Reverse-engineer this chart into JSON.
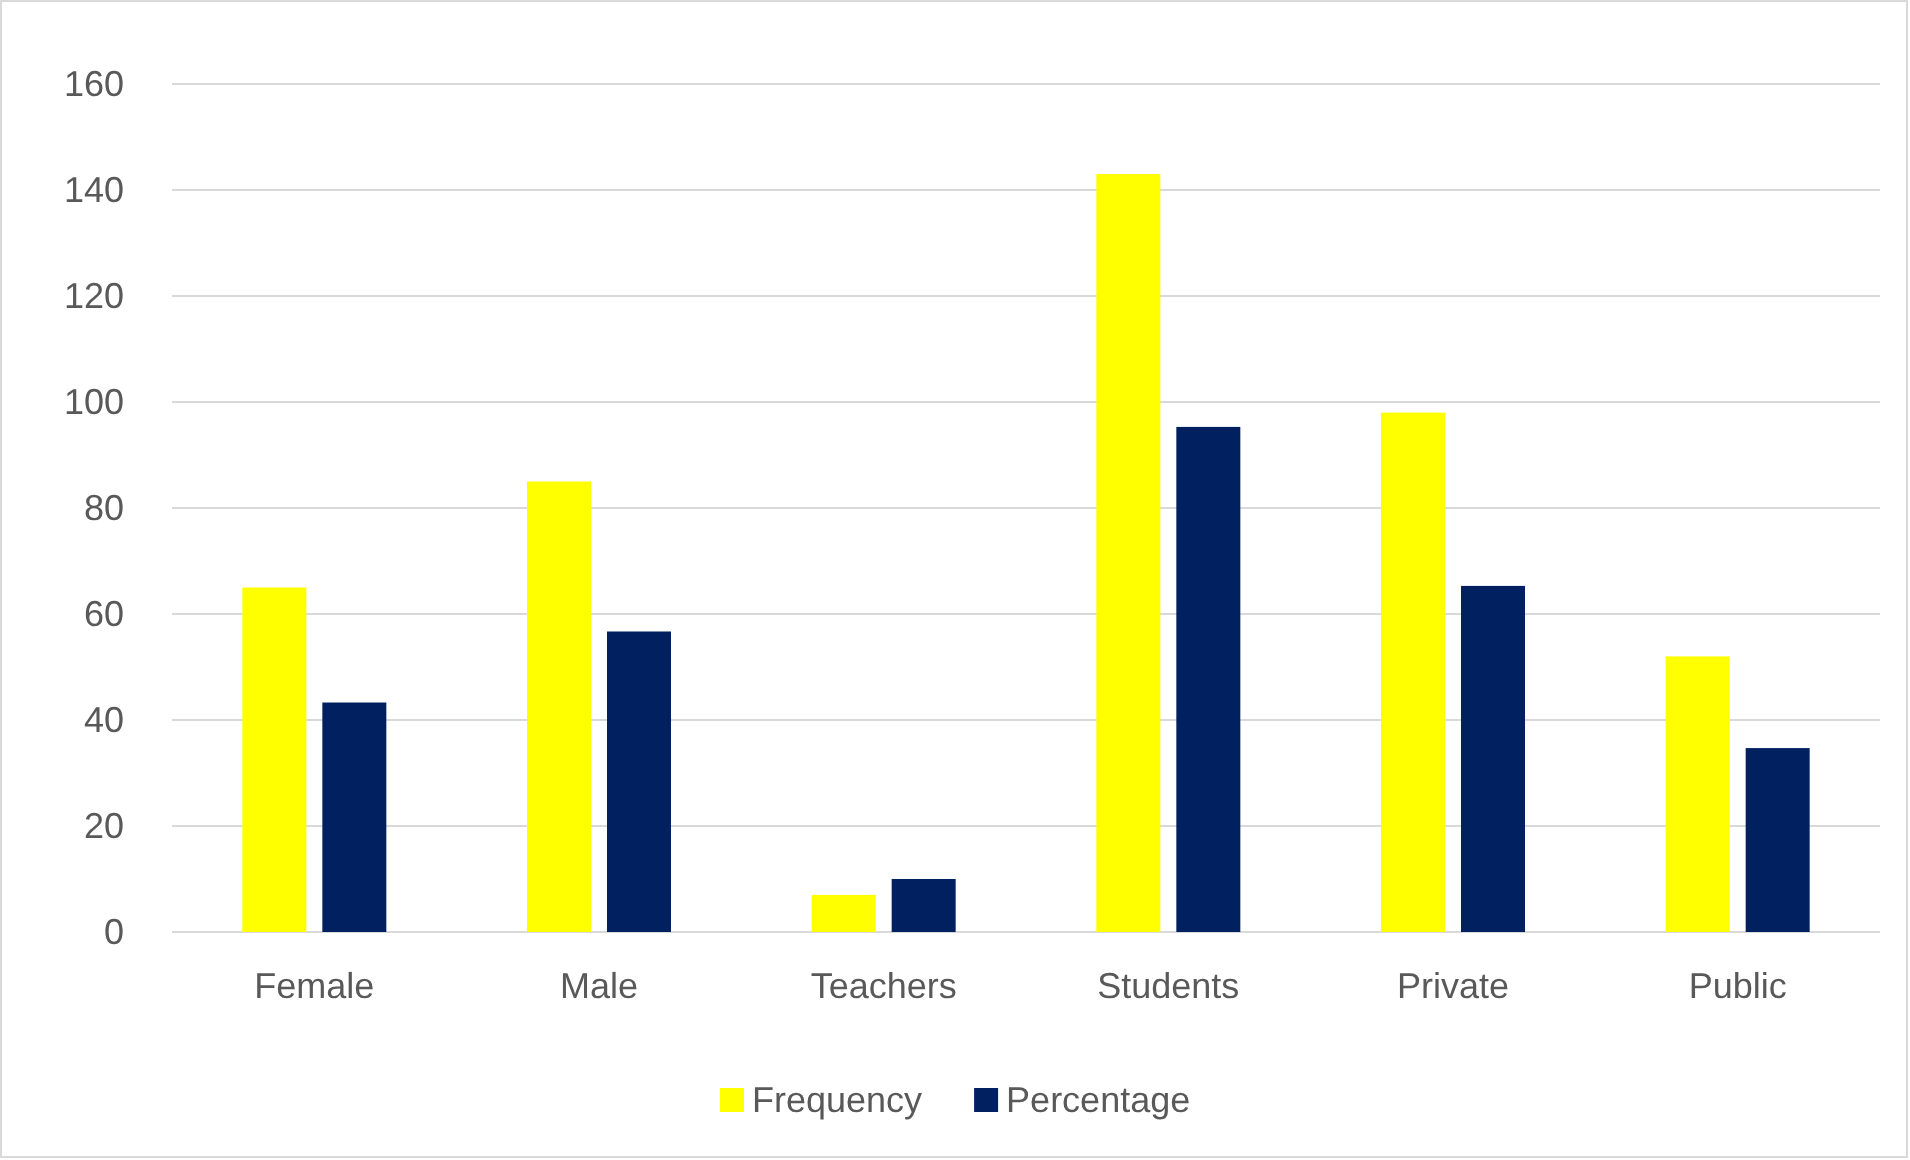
{
  "chart_data": {
    "type": "bar",
    "categories": [
      "Female",
      "Male",
      "Teachers",
      "Students",
      "Private",
      "Public"
    ],
    "series": [
      {
        "name": "Frequency",
        "color": "#ffff00",
        "values": [
          65,
          85,
          7,
          143,
          98,
          52
        ]
      },
      {
        "name": "Percentage",
        "color": "#002060",
        "values": [
          43.3,
          56.7,
          10,
          95.3,
          65.3,
          34.7
        ]
      }
    ],
    "ylim": [
      0,
      160
    ],
    "yticks": [
      0,
      20,
      40,
      60,
      80,
      100,
      120,
      140,
      160
    ],
    "grid": "y",
    "legend": "bottom"
  }
}
